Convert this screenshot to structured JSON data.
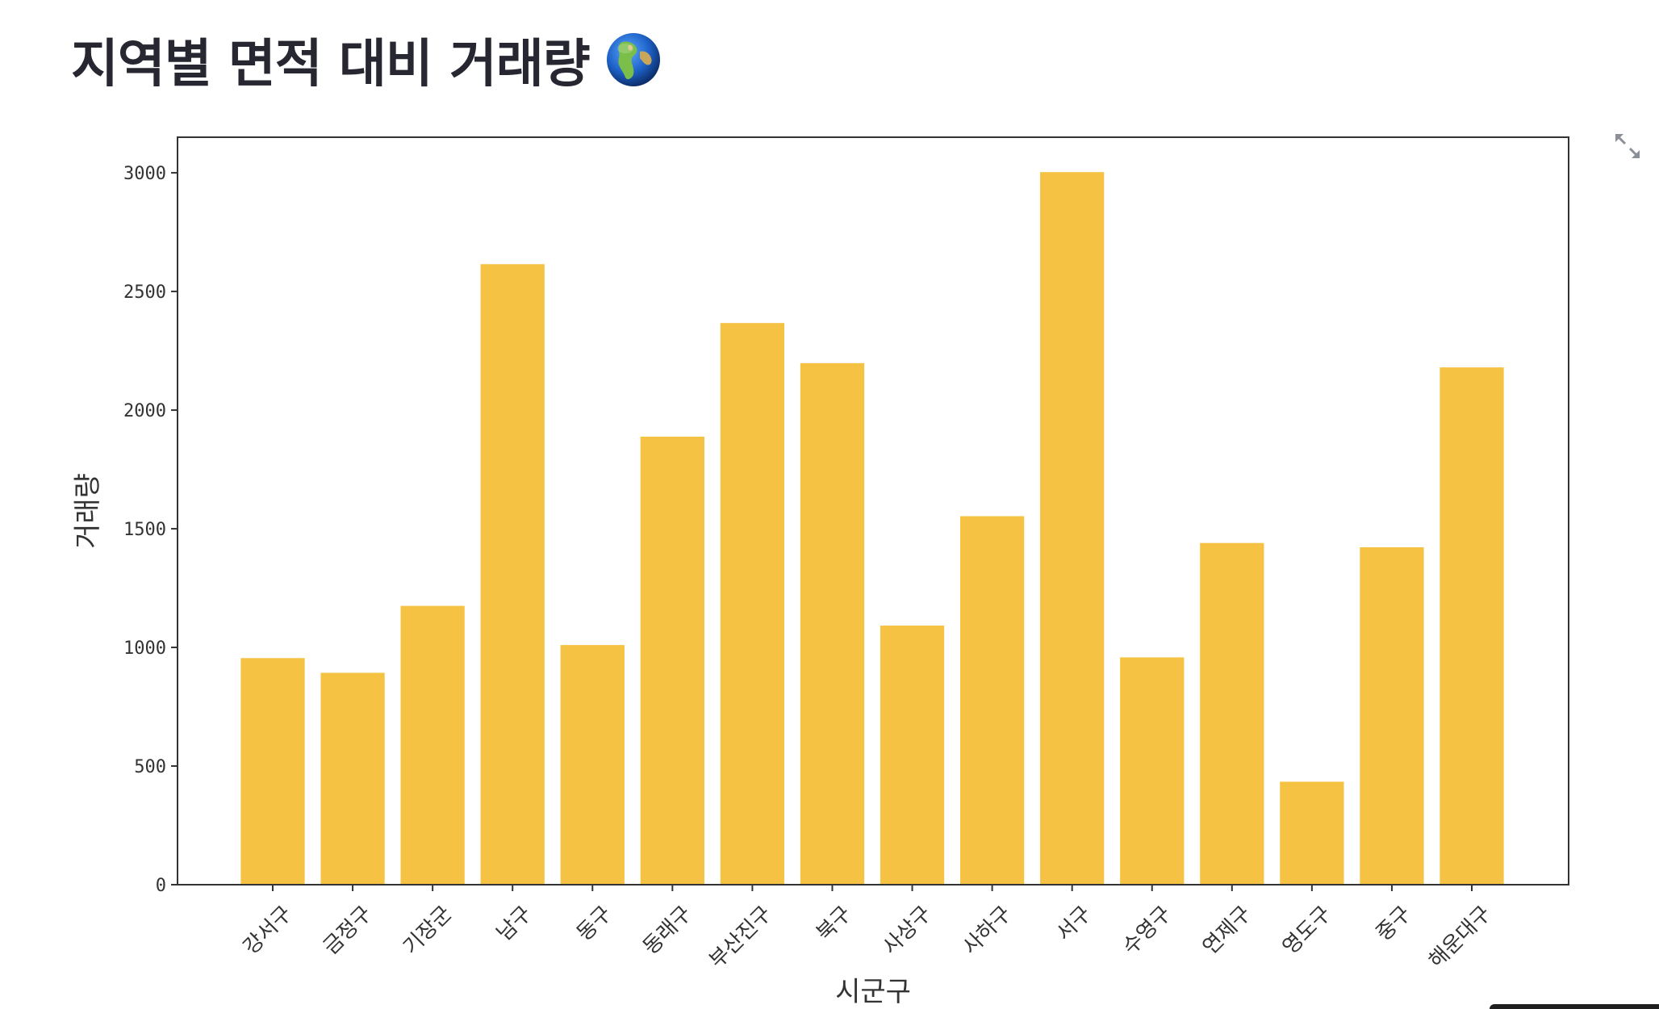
{
  "header": {
    "title": "지역별 면적 대비 거래량",
    "title_icon": "globe-emoji-icon"
  },
  "toolbar": {
    "expand_icon": "fullscreen-expand-icon"
  },
  "colors": {
    "bar": "#F5C243",
    "axis": "#333333",
    "title": "#262730"
  },
  "chart_data": {
    "type": "bar",
    "title": "",
    "xlabel": "시군구",
    "ylabel": "거래량",
    "ylim": [
      0,
      3150
    ],
    "yticks": [
      0,
      500,
      1000,
      1500,
      2000,
      2500,
      3000
    ],
    "grid": false,
    "categories": [
      "강서구",
      "금정구",
      "기장군",
      "남구",
      "동구",
      "동래구",
      "부산진구",
      "북구",
      "사상구",
      "사하구",
      "서구",
      "수영구",
      "연제구",
      "영도구",
      "중구",
      "해운대구"
    ],
    "values": [
      955,
      893,
      1175,
      2615,
      1010,
      1888,
      2367,
      2198,
      1092,
      1553,
      3003,
      958,
      1440,
      434,
      1422,
      2180
    ]
  }
}
